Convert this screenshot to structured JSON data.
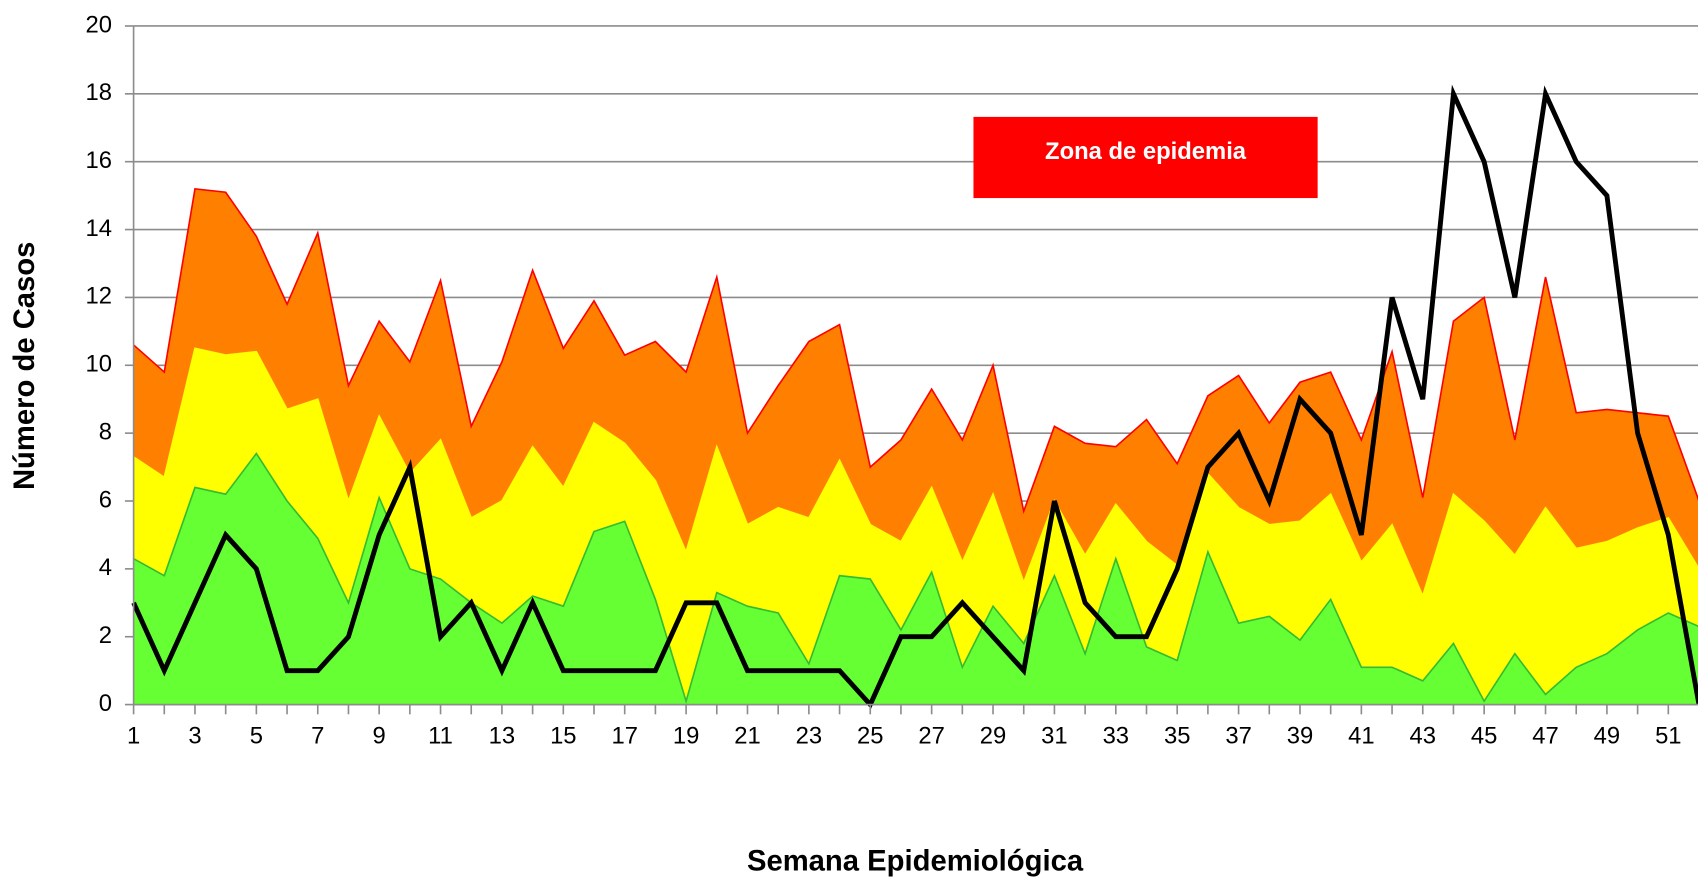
{
  "chart_data": {
    "type": "area",
    "xlabel": "Semana Epidemiológica",
    "ylabel": "Número de Casos",
    "annotation": "Zona de epidemia",
    "annotation_color": "#ff0000",
    "x": [
      1,
      2,
      3,
      4,
      5,
      6,
      7,
      8,
      9,
      10,
      11,
      12,
      13,
      14,
      15,
      16,
      17,
      18,
      19,
      20,
      21,
      22,
      23,
      24,
      25,
      26,
      27,
      28,
      29,
      30,
      31,
      32,
      33,
      34,
      35,
      36,
      37,
      38,
      39,
      40,
      41,
      42,
      43,
      44,
      45,
      46,
      47,
      48,
      49,
      50,
      51,
      52
    ],
    "xlim": [
      1,
      52
    ],
    "xticks": [
      1,
      3,
      5,
      7,
      9,
      11,
      13,
      15,
      17,
      19,
      21,
      23,
      25,
      27,
      29,
      31,
      33,
      35,
      37,
      39,
      41,
      43,
      45,
      47,
      49,
      51
    ],
    "ylim": [
      0,
      20
    ],
    "yticks": [
      0,
      2,
      4,
      6,
      8,
      10,
      12,
      14,
      16,
      18,
      20
    ],
    "grid": true,
    "series": [
      {
        "color": "#ff8000",
        "edge": "#ff0000",
        "kind": "area",
        "values": [
          10.6,
          9.8,
          15.2,
          15.1,
          13.8,
          11.8,
          13.9,
          9.4,
          11.3,
          10.1,
          12.5,
          8.2,
          10.1,
          12.8,
          10.5,
          11.9,
          10.3,
          10.7,
          9.8,
          12.6,
          8.0,
          9.4,
          10.7,
          11.2,
          7.0,
          7.8,
          9.3,
          7.8,
          10.0,
          5.7,
          8.2,
          7.7,
          7.6,
          8.4,
          7.1,
          9.1,
          9.7,
          8.3,
          9.5,
          9.8,
          7.8,
          10.4,
          6.1,
          11.3,
          12.0,
          7.8,
          12.6,
          8.6,
          8.7,
          8.6,
          8.5,
          6.0
        ]
      },
      {
        "color": "#ffff00",
        "edge": "#ffff00",
        "kind": "area",
        "values": [
          7.3,
          6.7,
          10.5,
          10.3,
          10.4,
          8.7,
          9.0,
          6.0,
          8.5,
          6.8,
          7.8,
          5.5,
          6.0,
          7.6,
          6.4,
          8.3,
          7.7,
          6.6,
          4.5,
          7.6,
          5.3,
          5.8,
          5.5,
          7.2,
          5.3,
          4.8,
          6.4,
          4.2,
          6.2,
          3.6,
          6.0,
          4.4,
          5.9,
          4.8,
          4.1,
          6.8,
          5.8,
          5.3,
          5.4,
          6.2,
          4.2,
          5.3,
          3.2,
          6.2,
          5.4,
          4.4,
          5.8,
          4.6,
          4.8,
          5.2,
          5.5,
          4.0
        ]
      },
      {
        "color": "#66ff33",
        "edge": "#33bb33",
        "kind": "area",
        "values": [
          4.3,
          3.8,
          6.4,
          6.2,
          7.4,
          6.0,
          4.9,
          3.0,
          6.1,
          4.0,
          3.7,
          3.0,
          2.4,
          3.2,
          2.9,
          5.1,
          5.4,
          3.1,
          0.1,
          3.3,
          2.9,
          2.7,
          1.2,
          3.8,
          3.7,
          2.2,
          3.9,
          1.1,
          2.9,
          1.8,
          3.8,
          1.5,
          4.3,
          1.7,
          1.3,
          4.5,
          2.4,
          2.6,
          1.9,
          3.1,
          1.1,
          1.1,
          0.7,
          1.8,
          0.1,
          1.5,
          0.3,
          1.1,
          1.5,
          2.2,
          2.7,
          2.3
        ]
      },
      {
        "color": "#000000",
        "kind": "line",
        "values": [
          3,
          1,
          3,
          5,
          4,
          1,
          1,
          2,
          5,
          7,
          2,
          3,
          1,
          3,
          1,
          1,
          1,
          1,
          3,
          3,
          1,
          1,
          1,
          1,
          0,
          2,
          2,
          3,
          2,
          1,
          6,
          3,
          2,
          2,
          4,
          7,
          8,
          6,
          9,
          8,
          5,
          12,
          9,
          18,
          16,
          12,
          18,
          16,
          15,
          8,
          5,
          0
        ]
      }
    ]
  }
}
